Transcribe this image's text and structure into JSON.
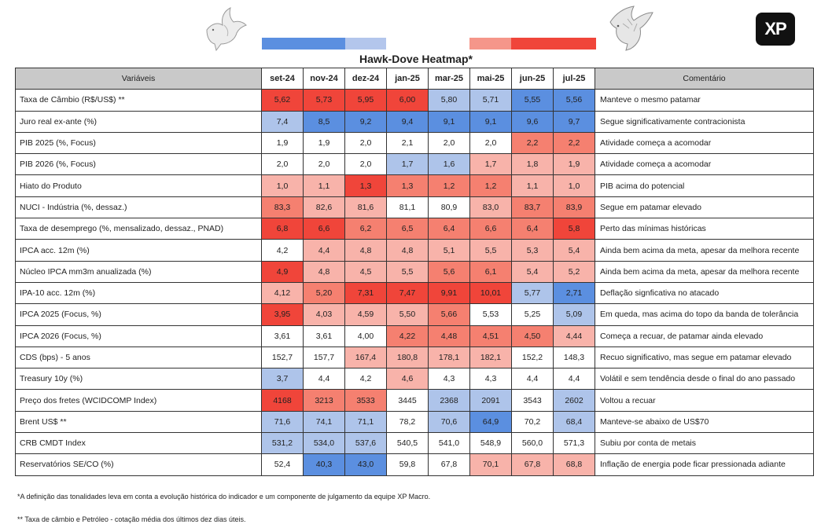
{
  "chart_data": {
    "type": "table",
    "title": "Hawk-Dove Heatmap*",
    "header": {
      "variables_label": "Variáveis",
      "comment_label": "Comentário",
      "months": [
        "set-24",
        "nov-24",
        "dez-24",
        "jan-25",
        "mar-25",
        "mai-25",
        "jun-25",
        "jul-25"
      ]
    },
    "legend_scale_colors": [
      "#5b8fe0",
      "#b3c6ec",
      "#ffffff",
      "#f5968a",
      "#f0453a"
    ],
    "palette": {
      "D2": "#5b8fe0",
      "D1": "#aec4ea",
      "N": "#ffffff",
      "H1": "#f8b3aa",
      "H2": "#f58070",
      "H3": "#f0453a"
    },
    "rows": [
      {
        "variable": "Taxa de Câmbio (R$/US$) **",
        "values": [
          "5,62",
          "5,73",
          "5,95",
          "6,00",
          "5,80",
          "5,71",
          "5,55",
          "5,56"
        ],
        "tones": [
          "H3",
          "H3",
          "H3",
          "H3",
          "D1",
          "D1",
          "D2",
          "D2"
        ],
        "comment": "Manteve o mesmo patamar"
      },
      {
        "variable": "Juro real ex-ante (%)",
        "values": [
          "7,4",
          "8,5",
          "9,2",
          "9,4",
          "9,1",
          "9,1",
          "9,6",
          "9,7"
        ],
        "tones": [
          "D1",
          "D2",
          "D2",
          "D2",
          "D2",
          "D2",
          "D2",
          "D2"
        ],
        "comment": "Segue significativamente contracionista"
      },
      {
        "variable": "PIB 2025 (%, Focus)",
        "values": [
          "1,9",
          "1,9",
          "2,0",
          "2,1",
          "2,0",
          "2,0",
          "2,2",
          "2,2"
        ],
        "tones": [
          "N",
          "N",
          "N",
          "N",
          "N",
          "N",
          "H2",
          "H2"
        ],
        "comment": "Atividade começa a acomodar"
      },
      {
        "variable": "PIB 2026 (%, Focus)",
        "values": [
          "2,0",
          "2,0",
          "2,0",
          "1,7",
          "1,6",
          "1,7",
          "1,8",
          "1,9"
        ],
        "tones": [
          "N",
          "N",
          "N",
          "D1",
          "D1",
          "H1",
          "H1",
          "H1"
        ],
        "comment": "Atividade começa a acomodar"
      },
      {
        "variable": "Hiato do Produto",
        "values": [
          "1,0",
          "1,1",
          "1,3",
          "1,3",
          "1,2",
          "1,2",
          "1,1",
          "1,0"
        ],
        "tones": [
          "H1",
          "H1",
          "H3",
          "H2",
          "H2",
          "H2",
          "H1",
          "H1"
        ],
        "comment": "PIB acima do potencial"
      },
      {
        "variable": "NUCI - Indústria (%, dessaz.)",
        "values": [
          "83,3",
          "82,6",
          "81,6",
          "81,1",
          "80,9",
          "83,0",
          "83,7",
          "83,9"
        ],
        "tones": [
          "H2",
          "H1",
          "H1",
          "N",
          "N",
          "H1",
          "H2",
          "H2"
        ],
        "comment": "Segue em patamar elevado"
      },
      {
        "variable": "Taxa de desemprego (%, mensalizado, dessaz., PNAD)",
        "values": [
          "6,8",
          "6,6",
          "6,2",
          "6,5",
          "6,4",
          "6,6",
          "6,4",
          "5,8"
        ],
        "tones": [
          "H3",
          "H3",
          "H2",
          "H2",
          "H2",
          "H2",
          "H2",
          "H3"
        ],
        "comment": "Perto das mínimas históricas"
      },
      {
        "variable": "IPCA acc. 12m (%)",
        "values": [
          "4,2",
          "4,4",
          "4,8",
          "4,8",
          "5,1",
          "5,5",
          "5,3",
          "5,4"
        ],
        "tones": [
          "N",
          "H1",
          "H1",
          "H1",
          "H1",
          "H1",
          "H1",
          "H1"
        ],
        "comment": "Ainda bem acima da meta, apesar da melhora recente"
      },
      {
        "variable": "Núcleo IPCA mm3m anualizada (%)",
        "values": [
          "4,9",
          "4,8",
          "4,5",
          "5,5",
          "5,6",
          "6,1",
          "5,4",
          "5,2"
        ],
        "tones": [
          "H3",
          "H1",
          "H1",
          "H1",
          "H2",
          "H2",
          "H1",
          "H1"
        ],
        "comment": "Ainda bem acima da meta, apesar da melhora recente"
      },
      {
        "variable": "IPA-10 acc. 12m (%)",
        "values": [
          "4,12",
          "5,20",
          "7,31",
          "7,47",
          "9,91",
          "10,01",
          "5,77",
          "2,71"
        ],
        "tones": [
          "H1",
          "H2",
          "H3",
          "H3",
          "H3",
          "H3",
          "D1",
          "D2"
        ],
        "comment": "Deflação signficativa no atacado"
      },
      {
        "variable": "IPCA 2025 (Focus, %)",
        "values": [
          "3,95",
          "4,03",
          "4,59",
          "5,50",
          "5,66",
          "5,53",
          "5,25",
          "5,09"
        ],
        "tones": [
          "H3",
          "H1",
          "H1",
          "H1",
          "H2",
          "N",
          "N",
          "D1"
        ],
        "comment": "Em queda, mas acima do topo da banda de tolerância"
      },
      {
        "variable": "IPCA 2026 (Focus, %)",
        "values": [
          "3,61",
          "3,61",
          "4,00",
          "4,22",
          "4,48",
          "4,51",
          "4,50",
          "4,44"
        ],
        "tones": [
          "N",
          "N",
          "N",
          "H2",
          "H2",
          "H2",
          "H2",
          "H1"
        ],
        "comment": "Começa a recuar, de patamar ainda elevado"
      },
      {
        "variable": "CDS (bps) - 5 anos",
        "values": [
          "152,7",
          "157,7",
          "167,4",
          "180,8",
          "178,1",
          "182,1",
          "152,2",
          "148,3"
        ],
        "tones": [
          "N",
          "N",
          "H1",
          "H1",
          "H1",
          "H1",
          "N",
          "N"
        ],
        "comment": "Recuo significativo, mas segue em patamar elevado"
      },
      {
        "variable": "Treasury 10y (%)",
        "values": [
          "3,7",
          "4,4",
          "4,2",
          "4,6",
          "4,3",
          "4,3",
          "4,4",
          "4,4"
        ],
        "tones": [
          "D1",
          "N",
          "N",
          "H1",
          "N",
          "N",
          "N",
          "N"
        ],
        "comment": "Volátil e sem tendência desde o final do ano passado"
      },
      {
        "variable": "Preço dos fretes (WCIDCOMP Index)",
        "values": [
          "4168",
          "3213",
          "3533",
          "3445",
          "2368",
          "2091",
          "3543",
          "2602"
        ],
        "tones": [
          "H3",
          "H2",
          "H2",
          "N",
          "D1",
          "D1",
          "N",
          "D1"
        ],
        "comment": "Voltou a recuar"
      },
      {
        "variable": "Brent US$ **",
        "values": [
          "71,6",
          "74,1",
          "71,1",
          "78,2",
          "70,6",
          "64,9",
          "70,2",
          "68,4"
        ],
        "tones": [
          "D1",
          "D1",
          "D1",
          "N",
          "D1",
          "D2",
          "N",
          "D1"
        ],
        "comment": "Manteve-se abaixo de US$70"
      },
      {
        "variable": "CRB CMDT Index",
        "values": [
          "531,2",
          "534,0",
          "537,6",
          "540,5",
          "541,0",
          "548,9",
          "560,0",
          "571,3"
        ],
        "tones": [
          "D1",
          "D1",
          "D1",
          "N",
          "N",
          "N",
          "N",
          "N"
        ],
        "comment": "Subiu por conta de metais"
      },
      {
        "variable": "Reservatórios SE/CO (%)",
        "values": [
          "52,4",
          "40,3",
          "43,0",
          "59,8",
          "67,8",
          "70,1",
          "67,8",
          "68,8"
        ],
        "tones": [
          "N",
          "D2",
          "D2",
          "N",
          "N",
          "H1",
          "H1",
          "H1"
        ],
        "comment": "Inflação de energia pode ficar pressionada adiante"
      }
    ],
    "footnotes": [
      "*A definição das tonalidades leva em conta a evolução histórica do indicador e um componente de julgamento da equipe XP Macro.",
      "** Taxa de câmbio e Petróleo - cotação média dos últimos dez dias úteis."
    ]
  },
  "logo_text": "XP"
}
